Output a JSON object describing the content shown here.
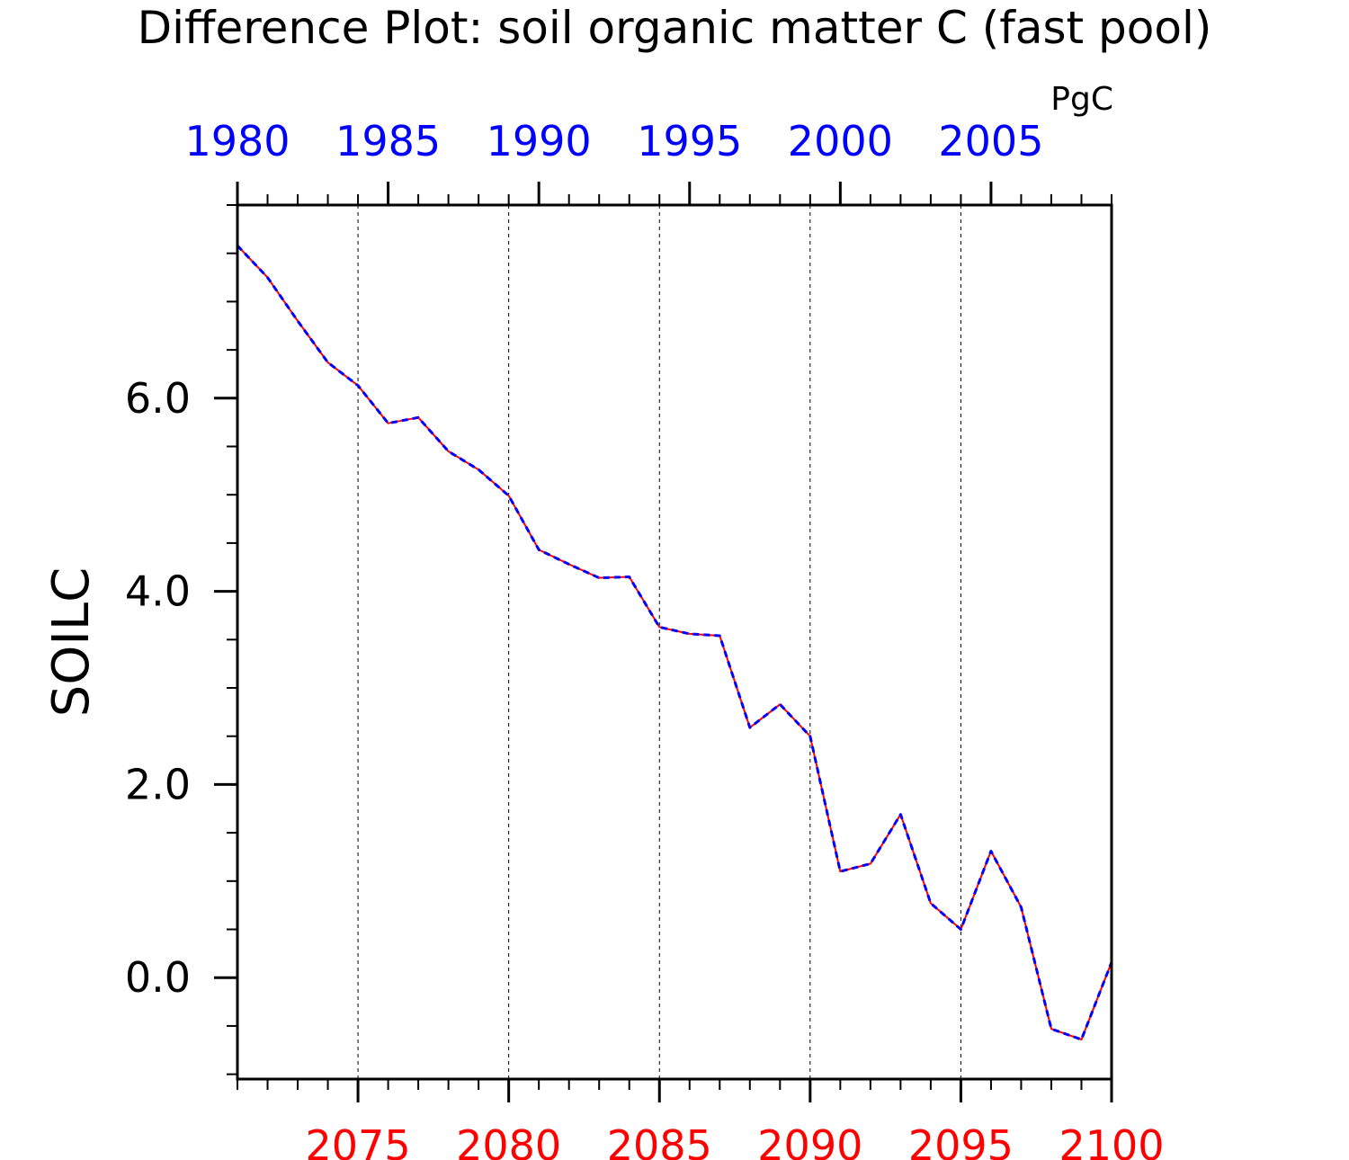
{
  "chart_data": {
    "type": "line",
    "title": "Difference Plot: soil organic matter C (fast pool)",
    "units": "PgC",
    "ylabel": "SOILC",
    "ylim": [
      -1.05,
      8.0
    ],
    "yticks": [
      0.0,
      2.0,
      4.0,
      6.0
    ],
    "yticklabels": [
      "0.0",
      "2.0",
      "4.0",
      "6.0"
    ],
    "bottom_axis": {
      "color": "#ff0000",
      "range": [
        2071,
        2100
      ],
      "ticks": [
        2075,
        2080,
        2085,
        2090,
        2095,
        2100
      ],
      "ticklabels": [
        "2075",
        "2080",
        "2085",
        "2090",
        "2095",
        "2100"
      ]
    },
    "top_axis": {
      "color": "#0000ff",
      "range": [
        1980,
        2009
      ],
      "ticks": [
        1980,
        1985,
        1990,
        1995,
        2000,
        2005
      ],
      "ticklabels": [
        "1980",
        "1985",
        "1990",
        "1995",
        "2000",
        "2005"
      ]
    },
    "grid": "vertical dashed at major ticks",
    "series": [
      {
        "color": "#ff0000",
        "style": "solid",
        "x": [
          2071,
          2072,
          2073,
          2074,
          2075,
          2076,
          2077,
          2078,
          2079,
          2080,
          2081,
          2082,
          2083,
          2084,
          2085,
          2086,
          2087,
          2088,
          2089,
          2090,
          2091,
          2092,
          2093,
          2094,
          2095,
          2096,
          2097,
          2098,
          2099,
          2100
        ],
        "values": [
          7.58,
          7.25,
          6.8,
          6.37,
          6.13,
          5.74,
          5.8,
          5.45,
          5.26,
          4.99,
          4.43,
          4.28,
          4.14,
          4.15,
          3.63,
          3.56,
          3.54,
          2.59,
          2.83,
          2.5,
          1.1,
          1.18,
          1.69,
          0.77,
          0.5,
          1.31,
          0.73,
          -0.53,
          -0.64,
          0.16
        ]
      },
      {
        "color": "#0000ff",
        "style": "dashed",
        "x": [
          2071,
          2072,
          2073,
          2074,
          2075,
          2076,
          2077,
          2078,
          2079,
          2080,
          2081,
          2082,
          2083,
          2084,
          2085,
          2086,
          2087,
          2088,
          2089,
          2090,
          2091,
          2092,
          2093,
          2094,
          2095,
          2096,
          2097,
          2098,
          2099,
          2100
        ],
        "values": [
          7.58,
          7.25,
          6.8,
          6.37,
          6.13,
          5.74,
          5.8,
          5.45,
          5.26,
          4.99,
          4.43,
          4.28,
          4.14,
          4.15,
          3.63,
          3.56,
          3.54,
          2.59,
          2.83,
          2.5,
          1.1,
          1.18,
          1.69,
          0.77,
          0.5,
          1.31,
          0.73,
          -0.53,
          -0.64,
          0.16
        ]
      }
    ]
  }
}
